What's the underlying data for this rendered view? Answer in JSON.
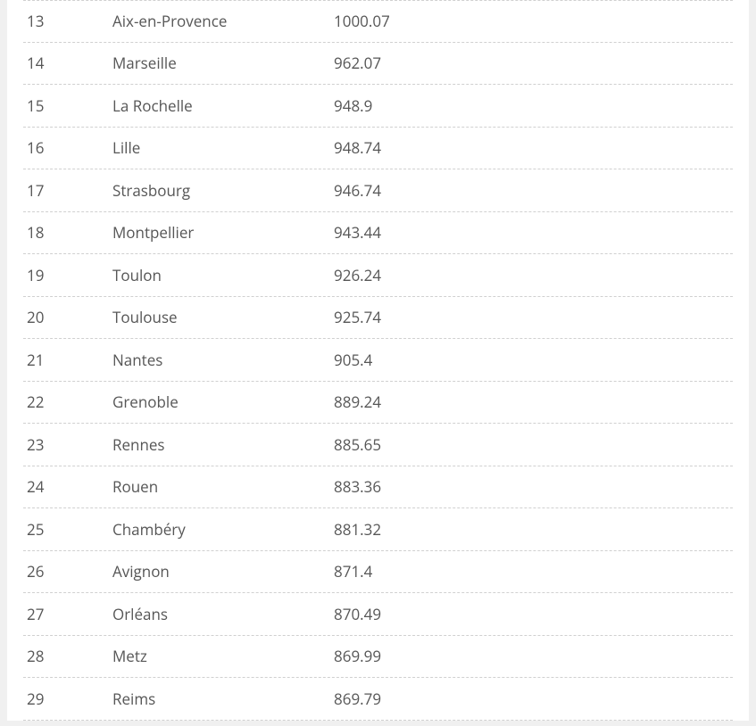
{
  "table": {
    "rows": [
      {
        "rank": "13",
        "city": "Aix-en-Provence",
        "value": "1000.07"
      },
      {
        "rank": "14",
        "city": "Marseille",
        "value": "962.07"
      },
      {
        "rank": "15",
        "city": "La Rochelle",
        "value": "948.9"
      },
      {
        "rank": "16",
        "city": "Lille",
        "value": "948.74"
      },
      {
        "rank": "17",
        "city": "Strasbourg",
        "value": "946.74"
      },
      {
        "rank": "18",
        "city": "Montpellier",
        "value": "943.44"
      },
      {
        "rank": "19",
        "city": "Toulon",
        "value": "926.24"
      },
      {
        "rank": "20",
        "city": "Toulouse",
        "value": "925.74"
      },
      {
        "rank": "21",
        "city": "Nantes",
        "value": "905.4"
      },
      {
        "rank": "22",
        "city": "Grenoble",
        "value": "889.24"
      },
      {
        "rank": "23",
        "city": "Rennes",
        "value": "885.65"
      },
      {
        "rank": "24",
        "city": "Rouen",
        "value": "883.36"
      },
      {
        "rank": "25",
        "city": "Chambéry",
        "value": "881.32"
      },
      {
        "rank": "26",
        "city": "Avignon",
        "value": "871.4"
      },
      {
        "rank": "27",
        "city": "Orléans",
        "value": "870.49"
      },
      {
        "rank": "28",
        "city": "Metz",
        "value": "869.99"
      },
      {
        "rank": "29",
        "city": "Reims",
        "value": "869.79"
      }
    ]
  }
}
